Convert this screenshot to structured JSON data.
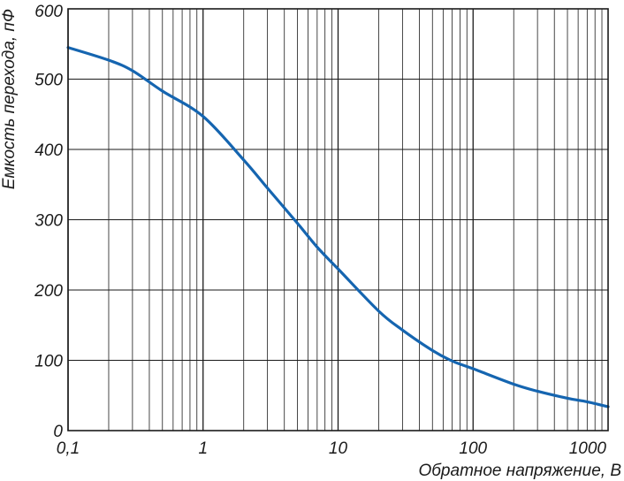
{
  "chart_data": {
    "type": "line",
    "title": "",
    "xlabel": "Обратное напряжение, В",
    "ylabel": "Емкость перехода, пФ",
    "xscale": "log",
    "xlim": [
      0.1,
      1000
    ],
    "ylim": [
      0,
      600
    ],
    "x_ticks": [
      0.1,
      1,
      10,
      100,
      1000
    ],
    "x_tick_labels": [
      "0,1",
      "1",
      "10",
      "100",
      "1000"
    ],
    "y_ticks": [
      0,
      100,
      200,
      300,
      400,
      500,
      600
    ],
    "y_tick_labels": [
      "0",
      "100",
      "200",
      "300",
      "400",
      "500",
      "600"
    ],
    "grid": true,
    "legend": "none",
    "line_color": "#1565b0",
    "series": [
      {
        "x": [
          0.1,
          0.2,
          0.3,
          0.5,
          1,
          2,
          3,
          5,
          7,
          10,
          20,
          30,
          50,
          70,
          100,
          200,
          300,
          500,
          700,
          1000
        ],
        "y": [
          545,
          527,
          512,
          483,
          447,
          385,
          345,
          295,
          261,
          230,
          170,
          143,
          114,
          99,
          88,
          66,
          56,
          46,
          41,
          34
        ]
      }
    ]
  }
}
